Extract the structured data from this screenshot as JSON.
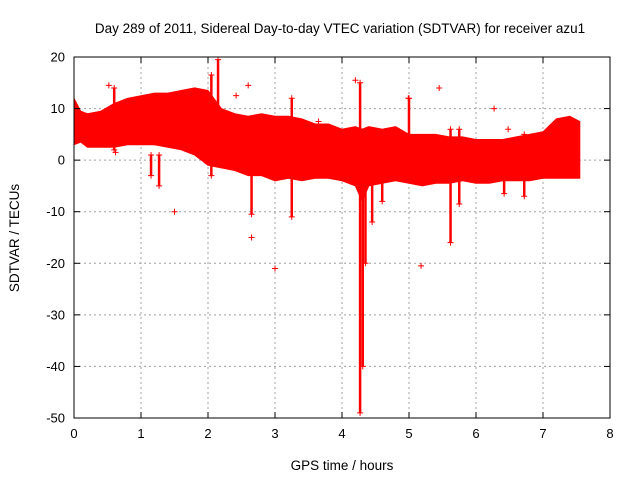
{
  "chart_data": {
    "type": "scatter",
    "title": "Day 289 of 2011, Sidereal Day-to-day VTEC variation (SDTVAR) for receiver azu1",
    "xlabel": "GPS time / hours",
    "ylabel": "SDTVAR / TECUs",
    "xlim": [
      0,
      8
    ],
    "ylim": [
      -50,
      20
    ],
    "x_ticks": [
      0,
      1,
      2,
      3,
      4,
      5,
      6,
      7,
      8
    ],
    "y_ticks": [
      -50,
      -40,
      -30,
      -20,
      -10,
      0,
      10,
      20
    ],
    "grid": true,
    "marker": "+",
    "series": [
      {
        "name": "SDTVAR",
        "color": "#ff0000",
        "band": {
          "x": [
            0.0,
            0.1,
            0.2,
            0.4,
            0.6,
            0.8,
            1.0,
            1.2,
            1.4,
            1.6,
            1.8,
            2.0,
            2.2,
            2.4,
            2.6,
            2.8,
            3.0,
            3.2,
            3.4,
            3.6,
            3.8,
            4.0,
            4.2,
            4.3,
            4.4,
            4.6,
            4.8,
            5.0,
            5.2,
            5.4,
            5.6,
            5.8,
            6.0,
            6.2,
            6.4,
            6.6,
            6.8,
            7.0,
            7.2,
            7.4,
            7.55
          ],
          "upper": [
            12.0,
            9.5,
            9.0,
            9.5,
            11.0,
            12.0,
            12.5,
            13.0,
            13.0,
            13.5,
            14.0,
            13.5,
            10.0,
            9.0,
            8.5,
            9.0,
            8.5,
            8.5,
            8.0,
            7.0,
            7.0,
            6.0,
            6.5,
            6.0,
            6.5,
            6.0,
            6.5,
            5.0,
            5.0,
            5.0,
            4.5,
            4.5,
            4.0,
            4.0,
            4.0,
            4.5,
            5.0,
            5.5,
            8.0,
            8.5,
            7.5
          ],
          "lower": [
            3.0,
            3.5,
            2.5,
            2.5,
            2.5,
            3.0,
            3.0,
            3.0,
            2.5,
            2.0,
            1.0,
            -1.0,
            -1.5,
            -2.0,
            -3.0,
            -3.0,
            -4.0,
            -3.5,
            -4.0,
            -3.5,
            -3.5,
            -4.0,
            -5.0,
            -8.0,
            -5.0,
            -4.5,
            -4.0,
            -4.5,
            -5.0,
            -4.5,
            -4.5,
            -4.0,
            -4.5,
            -4.5,
            -4.0,
            -4.0,
            -4.0,
            -3.5,
            -3.5,
            -3.5,
            -3.5
          ]
        },
        "spikes": [
          {
            "x": 0.6,
            "y1": 2.0,
            "y2": 14.0
          },
          {
            "x": 1.15,
            "y1": -3.0,
            "y2": 1.0
          },
          {
            "x": 1.27,
            "y1": -5.0,
            "y2": 1.0
          },
          {
            "x": 2.05,
            "y1": -3.0,
            "y2": 16.5
          },
          {
            "x": 2.15,
            "y1": 0.0,
            "y2": 19.5
          },
          {
            "x": 2.65,
            "y1": -10.5,
            "y2": 0.0
          },
          {
            "x": 3.25,
            "y1": -11.0,
            "y2": 12.0
          },
          {
            "x": 4.27,
            "y1": -49.0,
            "y2": 15.0
          },
          {
            "x": 4.31,
            "y1": -40.0,
            "y2": 0.0
          },
          {
            "x": 4.35,
            "y1": -20.0,
            "y2": -4.0
          },
          {
            "x": 4.45,
            "y1": -12.0,
            "y2": -4.0
          },
          {
            "x": 4.6,
            "y1": -8.0,
            "y2": -4.0
          },
          {
            "x": 5.0,
            "y1": -3.0,
            "y2": 12.0
          },
          {
            "x": 5.62,
            "y1": -16.0,
            "y2": 6.0
          },
          {
            "x": 5.75,
            "y1": -8.5,
            "y2": 6.0
          },
          {
            "x": 6.42,
            "y1": -6.5,
            "y2": 3.0
          },
          {
            "x": 6.72,
            "y1": -7.0,
            "y2": 5.0
          }
        ],
        "outliers": [
          {
            "x": 1.5,
            "y": -10.0
          },
          {
            "x": 2.65,
            "y": -15.0
          },
          {
            "x": 3.0,
            "y": -21.0
          },
          {
            "x": 4.2,
            "y": 15.5
          },
          {
            "x": 5.18,
            "y": -20.5
          },
          {
            "x": 5.45,
            "y": 14.0
          },
          {
            "x": 6.27,
            "y": 10.0
          },
          {
            "x": 4.99,
            "y": 12.0
          },
          {
            "x": 3.65,
            "y": 7.5
          },
          {
            "x": 2.42,
            "y": 12.5
          },
          {
            "x": 2.6,
            "y": 14.5
          },
          {
            "x": 0.52,
            "y": 14.5
          },
          {
            "x": 0.62,
            "y": 1.5
          },
          {
            "x": 6.48,
            "y": 6.0
          }
        ]
      }
    ]
  }
}
